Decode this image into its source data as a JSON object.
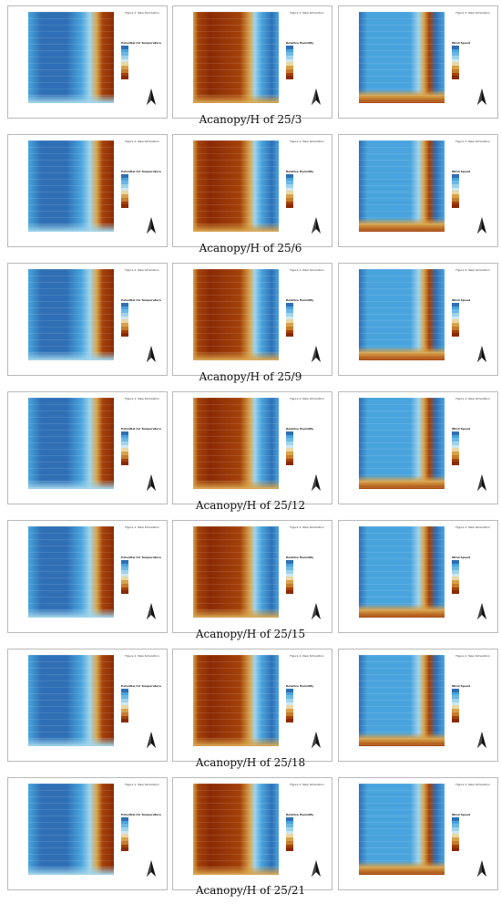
{
  "rows": [
    {
      "caption": "Acanopy/H of 25/3"
    },
    {
      "caption": "Acanopy/H of 25/6"
    },
    {
      "caption": "Acanopy/H of 25/9"
    },
    {
      "caption": "Acanopy/H of 25/12"
    },
    {
      "caption": "Acanopy/H of 25/15"
    },
    {
      "caption": "Acanopy/H of 25/18"
    },
    {
      "caption": "Acanopy/H of 25/21"
    }
  ],
  "panels": [
    {
      "variable": "Potential Air Temperature",
      "kind": "temperature"
    },
    {
      "variable": "Relative Humidity",
      "kind": "humidity"
    },
    {
      "variable": "Wind Speed",
      "kind": "wind"
    }
  ],
  "figure_title": "Figure 1: New Simulation",
  "colors": {
    "deep_blue": "#2f6fb5",
    "mid_blue": "#49a4dd",
    "light_blue": "#9fd3ea",
    "tan": "#d8a24a",
    "brown": "#a4420a",
    "dark_brown": "#8a2a05"
  }
}
